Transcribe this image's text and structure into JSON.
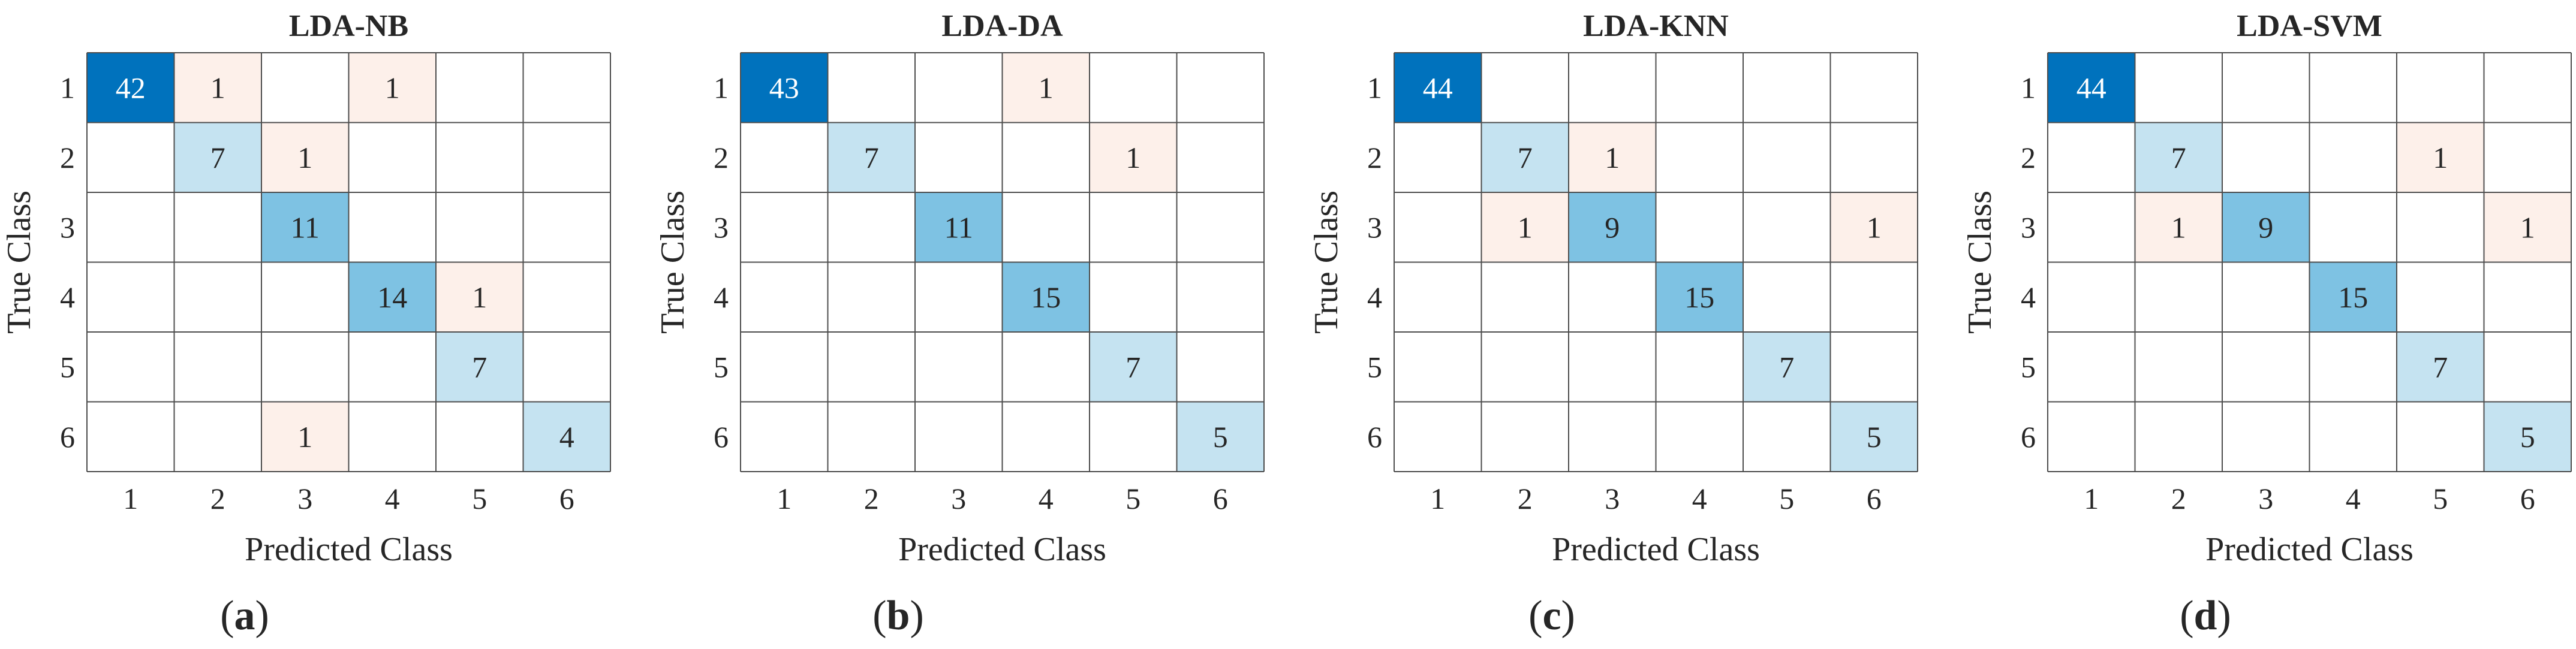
{
  "chart_data": [
    {
      "type": "heatmap",
      "title": "LDA-NB",
      "caption": "a",
      "xlabel": "Predicted Class",
      "ylabel": "True Class",
      "x_categories": [
        "1",
        "2",
        "3",
        "4",
        "5",
        "6"
      ],
      "y_categories": [
        "1",
        "2",
        "3",
        "4",
        "5",
        "6"
      ],
      "matrix": [
        [
          42,
          1,
          0,
          1,
          0,
          0
        ],
        [
          0,
          7,
          1,
          0,
          0,
          0
        ],
        [
          0,
          0,
          11,
          0,
          0,
          0
        ],
        [
          0,
          0,
          0,
          14,
          1,
          0
        ],
        [
          0,
          0,
          0,
          0,
          7,
          0
        ],
        [
          0,
          0,
          1,
          0,
          0,
          4
        ]
      ]
    },
    {
      "type": "heatmap",
      "title": "LDA-DA",
      "caption": "b",
      "xlabel": "Predicted Class",
      "ylabel": "True Class",
      "x_categories": [
        "1",
        "2",
        "3",
        "4",
        "5",
        "6"
      ],
      "y_categories": [
        "1",
        "2",
        "3",
        "4",
        "5",
        "6"
      ],
      "matrix": [
        [
          43,
          0,
          0,
          1,
          0,
          0
        ],
        [
          0,
          7,
          0,
          0,
          1,
          0
        ],
        [
          0,
          0,
          11,
          0,
          0,
          0
        ],
        [
          0,
          0,
          0,
          15,
          0,
          0
        ],
        [
          0,
          0,
          0,
          0,
          7,
          0
        ],
        [
          0,
          0,
          0,
          0,
          0,
          5
        ]
      ]
    },
    {
      "type": "heatmap",
      "title": "LDA-KNN",
      "caption": "c",
      "xlabel": "Predicted Class",
      "ylabel": "True Class",
      "x_categories": [
        "1",
        "2",
        "3",
        "4",
        "5",
        "6"
      ],
      "y_categories": [
        "1",
        "2",
        "3",
        "4",
        "5",
        "6"
      ],
      "matrix": [
        [
          44,
          0,
          0,
          0,
          0,
          0
        ],
        [
          0,
          7,
          1,
          0,
          0,
          0
        ],
        [
          0,
          1,
          9,
          0,
          0,
          1
        ],
        [
          0,
          0,
          0,
          15,
          0,
          0
        ],
        [
          0,
          0,
          0,
          0,
          7,
          0
        ],
        [
          0,
          0,
          0,
          0,
          0,
          5
        ]
      ]
    },
    {
      "type": "heatmap",
      "title": "LDA-SVM",
      "caption": "d",
      "xlabel": "Predicted Class",
      "ylabel": "True Class",
      "x_categories": [
        "1",
        "2",
        "3",
        "4",
        "5",
        "6"
      ],
      "y_categories": [
        "1",
        "2",
        "3",
        "4",
        "5",
        "6"
      ],
      "matrix": [
        [
          44,
          0,
          0,
          0,
          0,
          0
        ],
        [
          0,
          7,
          0,
          0,
          1,
          0
        ],
        [
          0,
          1,
          9,
          0,
          0,
          1
        ],
        [
          0,
          0,
          0,
          15,
          0,
          0
        ],
        [
          0,
          0,
          0,
          0,
          7,
          0
        ],
        [
          0,
          0,
          0,
          0,
          0,
          5
        ]
      ]
    }
  ],
  "colors": {
    "diagonal_max": "#0072bd",
    "diagonal_mid": "#7ec2e3",
    "diagonal_low": "#c5e3f1",
    "off_diagonal": "#fdf0ea",
    "grid_line": "#4d4d4d",
    "text_dark": "#262626",
    "text_light": "#ffffff"
  }
}
